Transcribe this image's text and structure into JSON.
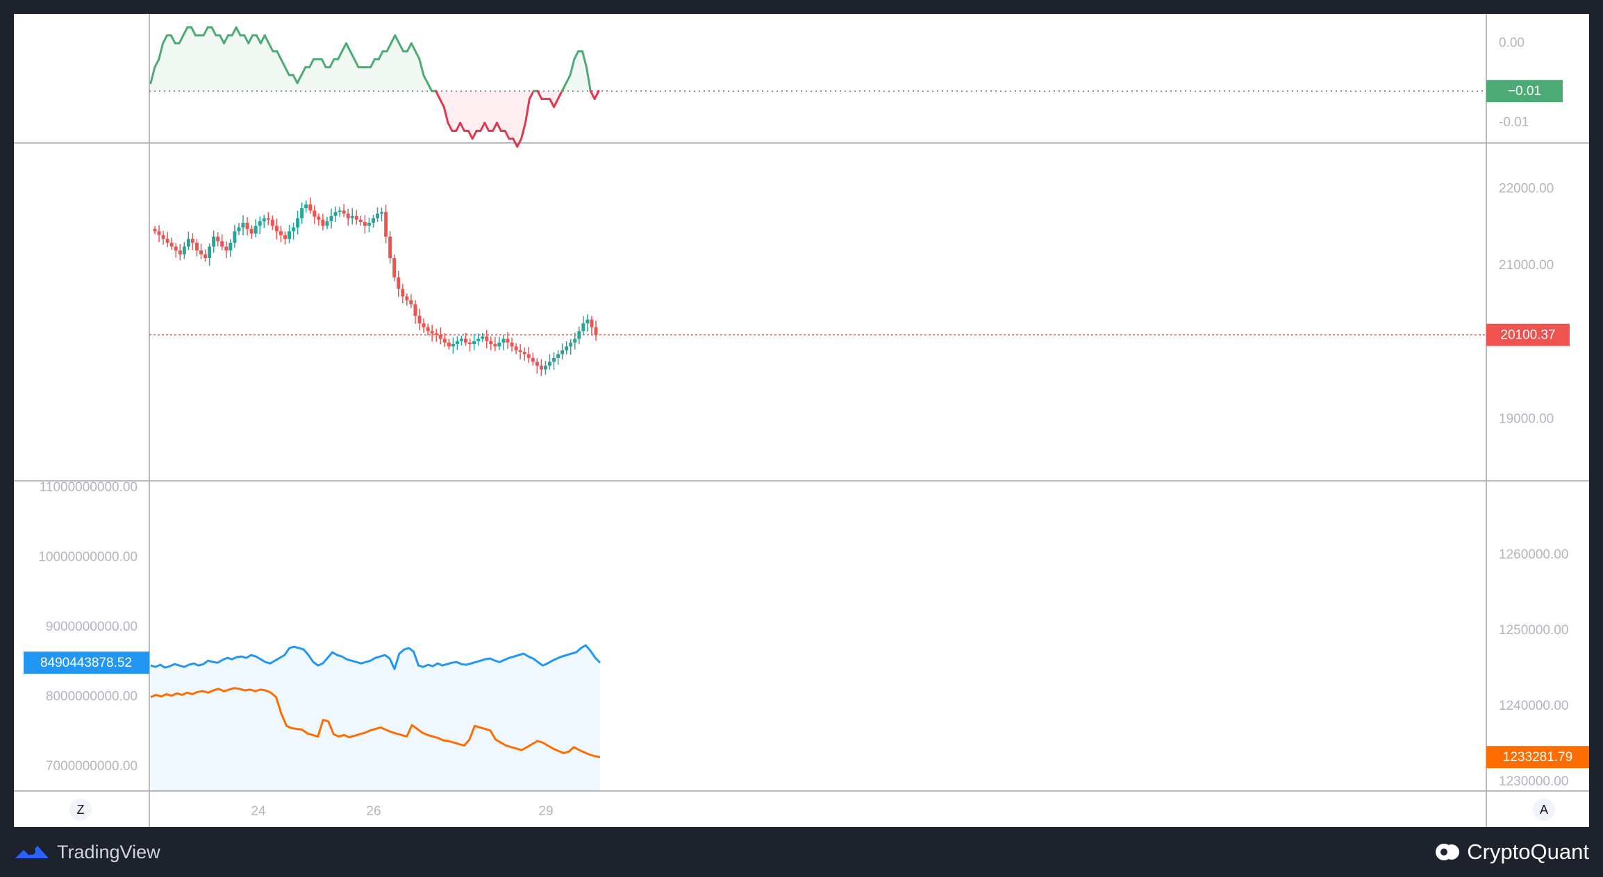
{
  "footer": {
    "left_brand": "TradingView",
    "left_logo_icon": "tradingview-logo-icon",
    "right_brand": "CryptoQuant",
    "right_logo_icon": "cryptoquant-logo-icon"
  },
  "controls": {
    "left_button": "Z",
    "right_button": "A"
  },
  "x_axis": {
    "ticks": [
      "24",
      "26",
      "29"
    ]
  },
  "colors": {
    "up": "#26a69a",
    "down": "#ef5350",
    "osc_up": "#4cab74",
    "osc_down": "#e0394e",
    "blue": "#2196f3",
    "orange": "#ff6d00",
    "grid_text": "#b2b5be"
  },
  "chart_data": [
    {
      "type": "line",
      "pane": "top-oscillator",
      "baseline": -0.006,
      "ylim": [
        -0.012,
        0.003
      ],
      "y_ticks": [
        "0.00",
        "-0.01"
      ],
      "y_tick_values": [
        0.0,
        -0.01
      ],
      "last_value_label": "−0.01",
      "values": [
        -0.005,
        -0.003,
        -0.002,
        0.0,
        0.001,
        0.001,
        0.0,
        0.0,
        0.001,
        0.002,
        0.002,
        0.001,
        0.001,
        0.001,
        0.002,
        0.002,
        0.001,
        0.001,
        0.0,
        0.001,
        0.001,
        0.002,
        0.001,
        0.001,
        0.0,
        0.001,
        0.001,
        0.0,
        0.001,
        0.0,
        -0.001,
        -0.001,
        -0.002,
        -0.003,
        -0.004,
        -0.004,
        -0.005,
        -0.004,
        -0.003,
        -0.003,
        -0.002,
        -0.002,
        -0.002,
        -0.003,
        -0.003,
        -0.002,
        -0.002,
        -0.001,
        0.0,
        -0.001,
        -0.002,
        -0.003,
        -0.003,
        -0.003,
        -0.003,
        -0.002,
        -0.002,
        -0.001,
        -0.001,
        0.0,
        0.001,
        0.0,
        -0.001,
        -0.001,
        0.0,
        -0.001,
        -0.002,
        -0.004,
        -0.005,
        -0.006,
        -0.006,
        -0.007,
        -0.008,
        -0.01,
        -0.011,
        -0.011,
        -0.01,
        -0.011,
        -0.011,
        -0.012,
        -0.011,
        -0.011,
        -0.01,
        -0.011,
        -0.011,
        -0.01,
        -0.011,
        -0.011,
        -0.012,
        -0.012,
        -0.013,
        -0.012,
        -0.01,
        -0.007,
        -0.006,
        -0.006,
        -0.007,
        -0.007,
        -0.007,
        -0.008,
        -0.007,
        -0.006,
        -0.005,
        -0.004,
        -0.002,
        -0.001,
        -0.001,
        -0.003,
        -0.006,
        -0.007,
        -0.006
      ]
    },
    {
      "type": "candlestick",
      "pane": "middle-price",
      "ylim": [
        18200,
        22600
      ],
      "y_ticks": [
        "22000.00",
        "21000.00",
        "19000.00"
      ],
      "y_tick_values": [
        22000,
        21000,
        19000
      ],
      "last_value_label": "20100.37",
      "last_value": 20100.37,
      "close": [
        21450,
        21400,
        21350,
        21300,
        21250,
        21200,
        21150,
        21250,
        21350,
        21300,
        21200,
        21150,
        21100,
        21250,
        21380,
        21320,
        21250,
        21200,
        21300,
        21450,
        21500,
        21560,
        21480,
        21420,
        21520,
        21580,
        21620,
        21600,
        21520,
        21450,
        21400,
        21350,
        21450,
        21500,
        21620,
        21750,
        21800,
        21720,
        21640,
        21600,
        21520,
        21580,
        21650,
        21700,
        21720,
        21680,
        21620,
        21650,
        21600,
        21570,
        21520,
        21560,
        21620,
        21680,
        21700,
        21380,
        21100,
        20850,
        20700,
        20600,
        20550,
        20500,
        20350,
        20250,
        20200,
        20150,
        20120,
        20100,
        20050,
        20000,
        19950,
        19980,
        20020,
        20050,
        20000,
        19980,
        20020,
        20050,
        20080,
        20020,
        19980,
        19950,
        20000,
        20050,
        20000,
        19950,
        19900,
        19880,
        19850,
        19800,
        19750,
        19700,
        19650,
        19700,
        19750,
        19800,
        19850,
        19900,
        19950,
        20000,
        20050,
        20150,
        20250,
        20300,
        20200,
        20100
      ]
    },
    {
      "type": "line",
      "pane": "bottom-dual-axis",
      "series": [
        {
          "name": "",
          "axis": "left",
          "ylim": [
            6650000000,
            11100000000
          ],
          "y_ticks": [
            "11000000000.00",
            "10000000000.00",
            "9000000000.00",
            "8000000000.00",
            "7000000000.00"
          ],
          "y_tick_values": [
            11000000000,
            10000000000,
            9000000000,
            8000000000,
            7000000000
          ],
          "last_value_label": "8490443878.52",
          "values": [
            8450000000,
            8430000000,
            8460000000,
            8420000000,
            8440000000,
            8470000000,
            8450000000,
            8430000000,
            8460000000,
            8480000000,
            8450000000,
            8470000000,
            8520000000,
            8500000000,
            8490000000,
            8530000000,
            8560000000,
            8540000000,
            8570000000,
            8580000000,
            8560000000,
            8600000000,
            8580000000,
            8540000000,
            8500000000,
            8480000000,
            8520000000,
            8560000000,
            8600000000,
            8700000000,
            8720000000,
            8700000000,
            8680000000,
            8600000000,
            8500000000,
            8450000000,
            8480000000,
            8560000000,
            8640000000,
            8600000000,
            8580000000,
            8540000000,
            8520000000,
            8500000000,
            8480000000,
            8500000000,
            8520000000,
            8560000000,
            8580000000,
            8600000000,
            8550000000,
            8400000000,
            8620000000,
            8680000000,
            8700000000,
            8650000000,
            8450000000,
            8430000000,
            8460000000,
            8440000000,
            8480000000,
            8450000000,
            8470000000,
            8490000000,
            8500000000,
            8470000000,
            8460000000,
            8480000000,
            8500000000,
            8520000000,
            8540000000,
            8550000000,
            8520000000,
            8500000000,
            8530000000,
            8560000000,
            8580000000,
            8600000000,
            8620000000,
            8580000000,
            8550000000,
            8500000000,
            8450000000,
            8480000000,
            8520000000,
            8550000000,
            8580000000,
            8600000000,
            8620000000,
            8640000000,
            8700000000,
            8740000000,
            8660000000,
            8560000000,
            8490443878.52
          ]
        },
        {
          "name": "",
          "axis": "right",
          "ylim": [
            1228800,
            1269800
          ],
          "y_ticks": [
            "1260000.00",
            "1250000.00",
            "1240000.00",
            "1230000.00"
          ],
          "y_tick_values": [
            1260000,
            1250000,
            1240000,
            1230000
          ],
          "last_value_label": "1233281.79",
          "values": [
            1241200,
            1241500,
            1241300,
            1241600,
            1241400,
            1241700,
            1241500,
            1241800,
            1241600,
            1241900,
            1242000,
            1241800,
            1242100,
            1242300,
            1242000,
            1242200,
            1242400,
            1242300,
            1242100,
            1242200,
            1242000,
            1242200,
            1242100,
            1241800,
            1241200,
            1239000,
            1237400,
            1237100,
            1237000,
            1236900,
            1236400,
            1236200,
            1236000,
            1238200,
            1238000,
            1236300,
            1236000,
            1236200,
            1235900,
            1236100,
            1236300,
            1236500,
            1236800,
            1237000,
            1237200,
            1236900,
            1236600,
            1236400,
            1236200,
            1236000,
            1237500,
            1237000,
            1236500,
            1236200,
            1236000,
            1235800,
            1235500,
            1235400,
            1235200,
            1235000,
            1234800,
            1235600,
            1237400,
            1237200,
            1237000,
            1236800,
            1235600,
            1235200,
            1234800,
            1234600,
            1234400,
            1234200,
            1234600,
            1235000,
            1235400,
            1235200,
            1234800,
            1234400,
            1234100,
            1233800,
            1234000,
            1234600,
            1234200,
            1233900,
            1233600,
            1233400,
            1233281.79
          ]
        }
      ]
    }
  ]
}
